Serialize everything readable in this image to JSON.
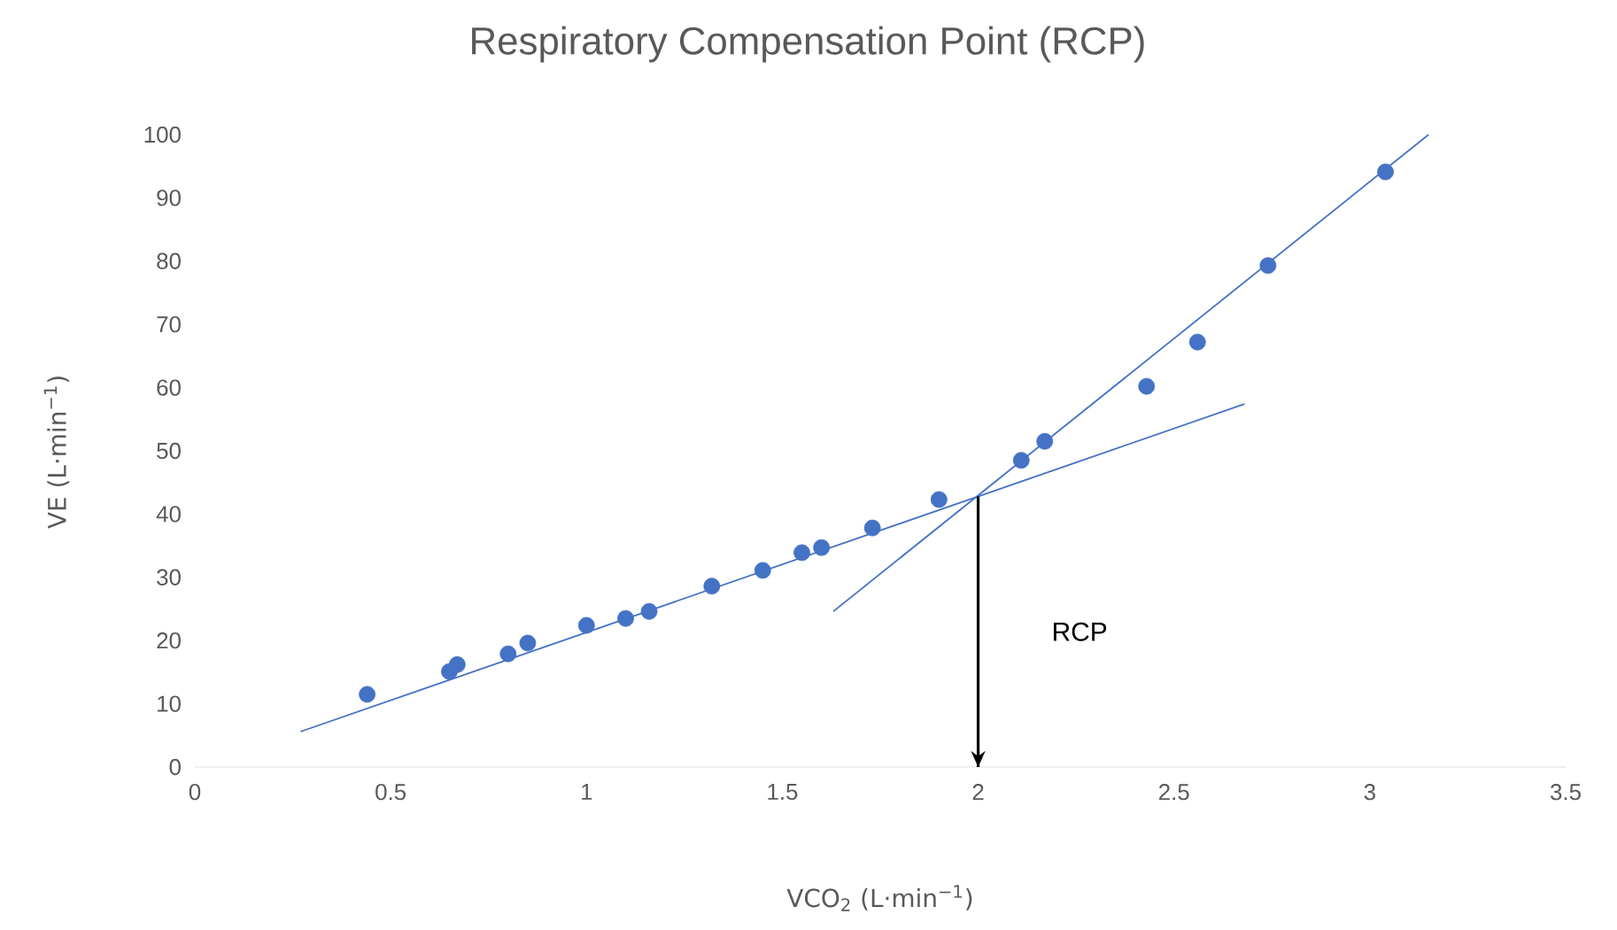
{
  "chart_data": {
    "type": "scatter",
    "title": "Respiratory Compensation Point (RCP)",
    "xlabel": "VCO$_{2}$ (L·min$^{−1}$)",
    "ylabel": "VE (L·min$^{−1}$)",
    "xlim": [
      0,
      3.5
    ],
    "ylim": [
      0,
      100
    ],
    "xticks": [
      0,
      0.5,
      1,
      1.5,
      2,
      2.5,
      3,
      3.5
    ],
    "yticks": [
      0,
      10,
      20,
      30,
      40,
      50,
      60,
      70,
      80,
      90,
      100
    ],
    "marker": "circle",
    "grid": false,
    "series": [
      {
        "color": "#4472c4",
        "x": [
          0.44,
          0.65,
          0.67,
          0.8,
          0.85,
          1.0,
          1.1,
          1.16,
          1.32,
          1.45,
          1.55,
          1.6,
          1.73,
          1.9,
          2.11,
          2.17,
          2.43,
          2.56,
          2.74,
          3.04
        ],
        "values": [
          11.5,
          15.1,
          16.2,
          17.9,
          19.6,
          22.4,
          23.5,
          24.6,
          28.6,
          31.1,
          33.9,
          34.7,
          37.8,
          42.3,
          48.5,
          51.5,
          60.2,
          67.2,
          79.3,
          94.1
        ]
      },
      {
        "type": "line",
        "color": "#4472c4",
        "marker": "none",
        "x": [
          0.27,
          2.68
        ],
        "values": [
          5.6,
          57.4
        ]
      },
      {
        "type": "line",
        "color": "#4472c4",
        "marker": "none",
        "x": [
          1.63,
          3.15
        ],
        "values": [
          24.6,
          100
        ]
      }
    ],
    "ref_lines": [
      {
        "axis": "x",
        "value": 2,
        "label": "RCP",
        "color": "#000000"
      }
    ]
  }
}
